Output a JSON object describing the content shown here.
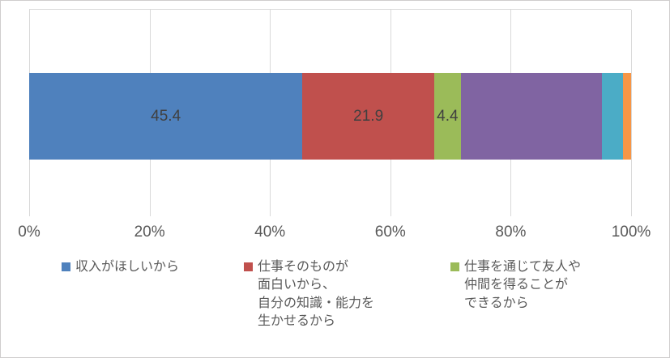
{
  "chart_data": {
    "type": "bar",
    "stacked": true,
    "orientation": "horizontal",
    "title": "",
    "xlabel": "",
    "ylabel": "",
    "x_axis": {
      "min": 0,
      "max": 100,
      "ticks": [
        "0%",
        "20%",
        "40%",
        "60%",
        "80%",
        "100%"
      ]
    },
    "grid": true,
    "legend_position": "bottom",
    "series": [
      {
        "name": "収入がほしいから",
        "value": 45.4,
        "label": "45.4",
        "color": "#4f81bd"
      },
      {
        "name": "仕事そのものが面白いから、自分の知識・能力を生かせるから",
        "value": 21.9,
        "label": "21.9",
        "color": "#c0504d"
      },
      {
        "name": "仕事を通じて友人や仲間を得ることができるから",
        "value": 4.4,
        "label": "4.4",
        "color": "#9bbb59"
      },
      {
        "name": "",
        "value": 23.5,
        "label": "",
        "color": "#8064a2"
      },
      {
        "name": "",
        "value": 3.4,
        "label": "",
        "color": "#4bacc6"
      },
      {
        "name": "",
        "value": 1.4,
        "label": "",
        "color": "#f79646"
      }
    ]
  },
  "legend": {
    "items": [
      {
        "label": "収入がほしいから",
        "color": "#4f81bd"
      },
      {
        "label": "仕事そのものが\n面白いから、\n自分の知識・能力を\n生かせるから",
        "color": "#c0504d"
      },
      {
        "label": "仕事を通じて友人や\n仲間を得ることが\nできるから",
        "color": "#9bbb59"
      }
    ]
  }
}
